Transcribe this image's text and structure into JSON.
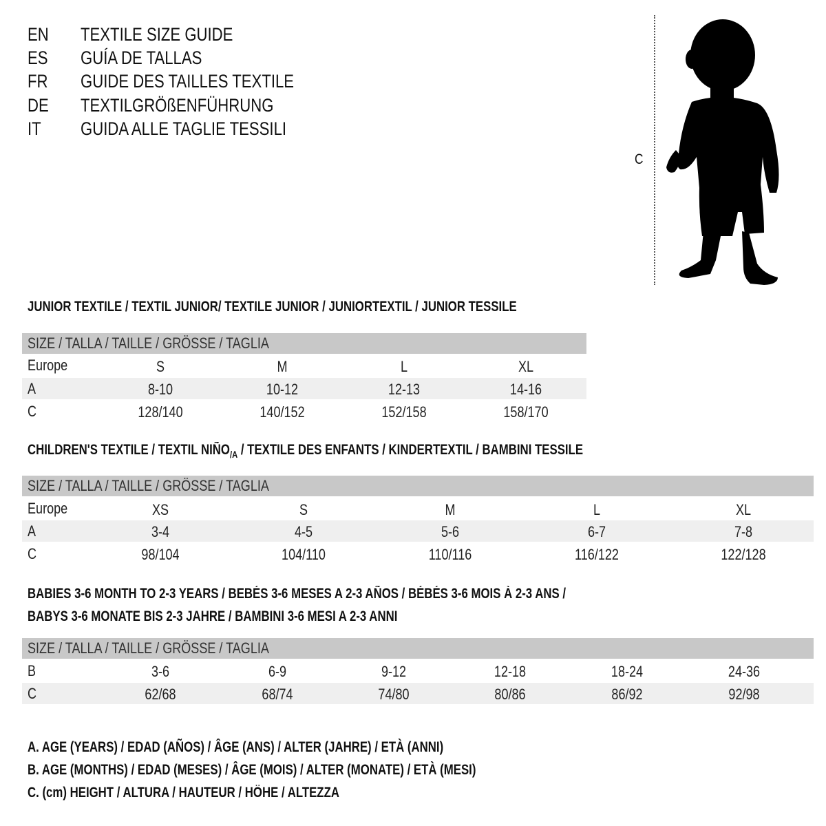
{
  "languages": [
    {
      "code": "EN",
      "title": "TEXTILE SIZE GUIDE"
    },
    {
      "code": "ES",
      "title": "GUÍA DE TALLAS"
    },
    {
      "code": "FR",
      "title": "GUIDE DES TAILLES TEXTILE"
    },
    {
      "code": "DE",
      "title": "TEXTILGRÖßENFÜHRUNG"
    },
    {
      "code": "IT",
      "title": "GUIDA ALLE TAGLIE TESSILI"
    }
  ],
  "figure": {
    "measure_label": "C",
    "icon": "child-silhouette"
  },
  "junior": {
    "heading": "JUNIOR TEXTILE / TEXTIL JUNIOR/ TEXTILE JUNIOR / JUNIORTEXTIL / JUNIOR TESSILE",
    "size_header": "SIZE / TALLA / TAILLE / GRÖSSE / TAGLIA",
    "rows": [
      {
        "label": "Europe",
        "values": [
          "S",
          "M",
          "L",
          "XL"
        ]
      },
      {
        "label": "A",
        "values": [
          "8-10",
          "10-12",
          "12-13",
          "14-16"
        ]
      },
      {
        "label": "C",
        "values": [
          "128/140",
          "140/152",
          "152/158",
          "158/170"
        ]
      }
    ]
  },
  "children": {
    "heading_pre": "CHILDREN'S TEXTILE / TEXTIL NIÑO",
    "heading_sub": "/A",
    "heading_post": " / TEXTILE DES ENFANTS / KINDERTEXTIL / BAMBINI TESSILE",
    "size_header": "SIZE / TALLA / TAILLE / GRÖSSE / TAGLIA",
    "rows": [
      {
        "label": "Europe",
        "values": [
          "XS",
          "S",
          "M",
          "L",
          "XL"
        ]
      },
      {
        "label": "A",
        "values": [
          "3-4",
          "4-5",
          "5-6",
          "6-7",
          "7-8"
        ]
      },
      {
        "label": "C",
        "values": [
          "98/104",
          "104/110",
          "110/116",
          "116/122",
          "122/128"
        ]
      }
    ]
  },
  "babies": {
    "heading_line1": "BABIES 3-6 MONTH TO 2-3 YEARS / BEBÉS 3-6 MESES A 2-3 AÑOS / BÉBÉS 3-6 MOIS À 2-3 ANS /",
    "heading_line2": "BABYS 3-6 MONATE BIS 2-3 JAHRE / BAMBINI 3-6 MESI A 2-3 ANNI",
    "size_header": "SIZE / TALLA / TAILLE / GRÖSSE / TAGLIA",
    "rows": [
      {
        "label": "B",
        "values": [
          "3-6",
          "6-9",
          "9-12",
          "12-18",
          "18-24",
          "24-36"
        ]
      },
      {
        "label": "C",
        "values": [
          "62/68",
          "68/74",
          "74/80",
          "80/86",
          "86/92",
          "92/98"
        ]
      }
    ]
  },
  "legend": [
    "A. AGE (YEARS) / EDAD (AÑOS) / ÂGE (ANS) / ALTER (JAHRE) / ETÀ (ANNI)",
    "B. AGE (MONTHS) / EDAD (MESES) / ÂGE (MOIS) / ALTER (MONATE) / ETÀ (MESI)",
    "C. (cm) HEIGHT / ALTURA / HAUTEUR / HÖHE / ALTEZZA"
  ],
  "colors": {
    "header_bar": "#c8c8c8",
    "row_band": "#efefef",
    "text": "#111111"
  }
}
